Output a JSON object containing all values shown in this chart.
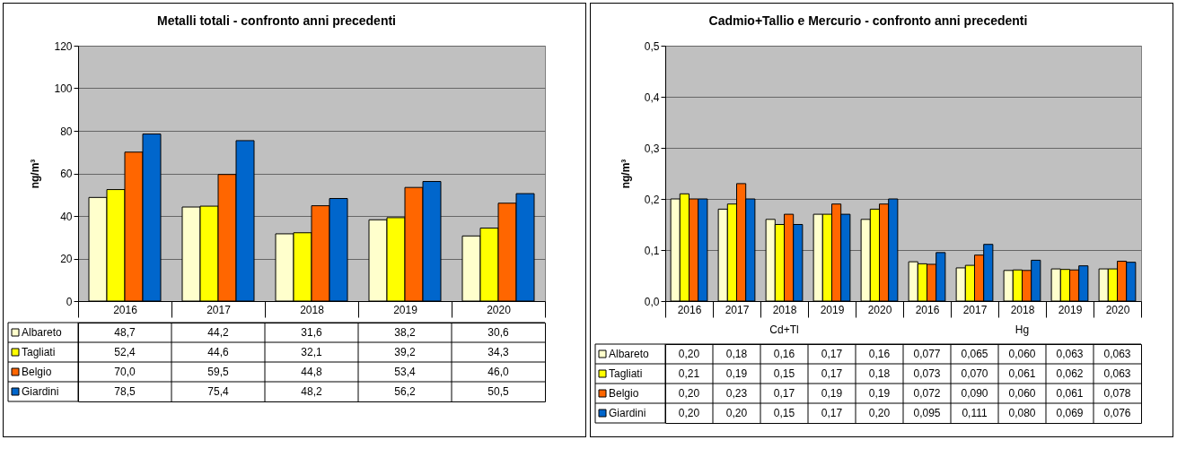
{
  "chart_data": [
    {
      "type": "bar",
      "title": "Metalli totali - confronto anni precedenti",
      "ylabel": "ng/m³",
      "categories": [
        "2016",
        "2017",
        "2018",
        "2019",
        "2020"
      ],
      "ylim": [
        0,
        120
      ],
      "yticks": [
        0,
        20,
        40,
        60,
        80,
        100,
        120
      ],
      "grid": "y",
      "legend": "bottom",
      "series": [
        {
          "name": "Albareto",
          "color": "#ffffcc",
          "values": [
            48.7,
            44.2,
            31.6,
            38.2,
            30.6
          ],
          "value_labels": [
            "48,7",
            "44,2",
            "31,6",
            "38,2",
            "30,6"
          ]
        },
        {
          "name": "Tagliati",
          "color": "#ffff00",
          "values": [
            52.4,
            44.6,
            32.1,
            39.2,
            34.3
          ],
          "value_labels": [
            "52,4",
            "44,6",
            "32,1",
            "39,2",
            "34,3"
          ]
        },
        {
          "name": "Belgio",
          "color": "#ff6600",
          "values": [
            70.0,
            59.5,
            44.8,
            53.4,
            46.0
          ],
          "value_labels": [
            "70,0",
            "59,5",
            "44,8",
            "53,4",
            "46,0"
          ]
        },
        {
          "name": "Giardini",
          "color": "#0066cc",
          "values": [
            78.5,
            75.4,
            48.2,
            56.2,
            50.5
          ],
          "value_labels": [
            "78,5",
            "75,4",
            "48,2",
            "56,2",
            "50,5"
          ]
        }
      ]
    },
    {
      "type": "bar",
      "title": "Cadmio+Tallio e Mercurio - confronto anni precedenti",
      "ylabel": "ng/m³",
      "categories": [
        "2016",
        "2017",
        "2018",
        "2019",
        "2020",
        "2016",
        "2017",
        "2018",
        "2019",
        "2020"
      ],
      "annotations": [
        "Cd+Tl",
        "Hg"
      ],
      "ylim": [
        0,
        0.5
      ],
      "yticks": [
        {
          "value": 0,
          "label": "0,0"
        },
        {
          "value": 0.1,
          "label": "0,1"
        },
        {
          "value": 0.2,
          "label": "0,2"
        },
        {
          "value": 0.3,
          "label": "0,3"
        },
        {
          "value": 0.4,
          "label": "0,4"
        },
        {
          "value": 0.5,
          "label": "0,5"
        }
      ],
      "grid": "y",
      "legend": "bottom",
      "series": [
        {
          "name": "Albareto",
          "color": "#ffffcc",
          "values": [
            0.2,
            0.18,
            0.16,
            0.17,
            0.16,
            0.077,
            0.065,
            0.06,
            0.063,
            0.063
          ],
          "value_labels": [
            "0,20",
            "0,18",
            "0,16",
            "0,17",
            "0,16",
            "0,077",
            "0,065",
            "0,060",
            "0,063",
            "0,063"
          ]
        },
        {
          "name": "Tagliati",
          "color": "#ffff00",
          "values": [
            0.21,
            0.19,
            0.15,
            0.17,
            0.18,
            0.073,
            0.07,
            0.061,
            0.062,
            0.063
          ],
          "value_labels": [
            "0,21",
            "0,19",
            "0,15",
            "0,17",
            "0,18",
            "0,073",
            "0,070",
            "0,061",
            "0,062",
            "0,063"
          ]
        },
        {
          "name": "Belgio",
          "color": "#ff6600",
          "values": [
            0.2,
            0.23,
            0.17,
            0.19,
            0.19,
            0.072,
            0.09,
            0.06,
            0.061,
            0.078
          ],
          "value_labels": [
            "0,20",
            "0,23",
            "0,17",
            "0,19",
            "0,19",
            "0,072",
            "0,090",
            "0,060",
            "0,061",
            "0,078"
          ]
        },
        {
          "name": "Giardini",
          "color": "#0066cc",
          "values": [
            0.2,
            0.2,
            0.15,
            0.17,
            0.2,
            0.095,
            0.111,
            0.08,
            0.069,
            0.076
          ],
          "value_labels": [
            "0,20",
            "0,20",
            "0,15",
            "0,17",
            "0,20",
            "0,095",
            "0,111",
            "0,080",
            "0,069",
            "0,076"
          ]
        }
      ]
    }
  ]
}
